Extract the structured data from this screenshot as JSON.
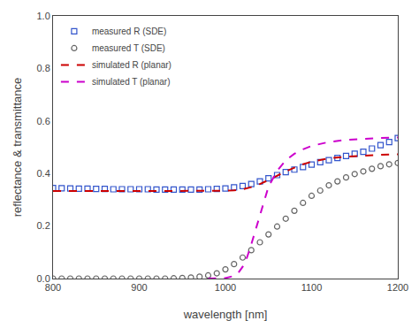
{
  "chart_data": {
    "type": "line",
    "xlabel": "wavelength [nm]",
    "ylabel": "reflectance & transmittance",
    "xlim": [
      800,
      1200
    ],
    "ylim": [
      0.0,
      1.0
    ],
    "xticks": [
      800,
      900,
      1000,
      1100,
      1200
    ],
    "yticks": [
      {
        "value": 0.0,
        "label": "0.0"
      },
      0.2,
      0.4,
      0.6,
      0.8,
      {
        "value": 1.0,
        "label": "1.0"
      }
    ],
    "grid": false,
    "legend": "upper left",
    "series": [
      {
        "name": "measured R (SDE)",
        "type": "scatter",
        "marker": "square",
        "color": "#3355cc",
        "x": [
          800,
          810,
          820,
          830,
          840,
          850,
          860,
          870,
          880,
          890,
          900,
          910,
          920,
          930,
          940,
          950,
          960,
          970,
          980,
          990,
          1000,
          1010,
          1020,
          1030,
          1040,
          1050,
          1060,
          1070,
          1080,
          1090,
          1100,
          1110,
          1120,
          1130,
          1140,
          1150,
          1160,
          1170,
          1180,
          1190,
          1200
        ],
        "values": [
          0.345,
          0.344,
          0.343,
          0.342,
          0.342,
          0.341,
          0.341,
          0.34,
          0.34,
          0.34,
          0.34,
          0.34,
          0.339,
          0.339,
          0.339,
          0.339,
          0.339,
          0.339,
          0.34,
          0.341,
          0.343,
          0.347,
          0.352,
          0.36,
          0.37,
          0.382,
          0.394,
          0.405,
          0.415,
          0.425,
          0.434,
          0.443,
          0.451,
          0.459,
          0.467,
          0.475,
          0.483,
          0.495,
          0.508,
          0.52,
          0.535
        ]
      },
      {
        "name": "measured T (SDE)",
        "type": "scatter",
        "marker": "circle",
        "color": "#666666",
        "x": [
          800,
          810,
          820,
          830,
          840,
          850,
          860,
          870,
          880,
          890,
          900,
          910,
          920,
          930,
          940,
          950,
          960,
          970,
          980,
          990,
          1000,
          1010,
          1020,
          1030,
          1040,
          1050,
          1060,
          1070,
          1080,
          1090,
          1100,
          1110,
          1120,
          1130,
          1140,
          1150,
          1160,
          1170,
          1180,
          1190,
          1200
        ],
        "values": [
          0.0,
          0.0,
          0.0,
          0.0,
          0.0,
          0.0,
          0.0,
          0.0,
          0.0,
          0.0,
          0.0,
          0.0,
          0.0,
          0.0,
          0.001,
          0.002,
          0.004,
          0.007,
          0.012,
          0.02,
          0.035,
          0.055,
          0.08,
          0.108,
          0.138,
          0.168,
          0.198,
          0.228,
          0.258,
          0.288,
          0.315,
          0.335,
          0.355,
          0.37,
          0.385,
          0.398,
          0.408,
          0.418,
          0.428,
          0.435,
          0.44
        ]
      },
      {
        "name": "simulated R (planar)",
        "type": "line",
        "line_style": "dashed",
        "color": "#cc0000",
        "x": [
          800,
          820,
          840,
          860,
          880,
          900,
          920,
          940,
          960,
          980,
          1000,
          1010,
          1020,
          1030,
          1040,
          1050,
          1060,
          1070,
          1080,
          1090,
          1100,
          1120,
          1140,
          1160,
          1180,
          1200
        ],
        "values": [
          0.333,
          0.333,
          0.333,
          0.333,
          0.333,
          0.333,
          0.333,
          0.333,
          0.333,
          0.333,
          0.334,
          0.336,
          0.34,
          0.348,
          0.36,
          0.375,
          0.392,
          0.408,
          0.422,
          0.435,
          0.445,
          0.458,
          0.464,
          0.468,
          0.471,
          0.473
        ]
      },
      {
        "name": "simulated T (planar)",
        "type": "line",
        "line_style": "dashed",
        "color": "#cc00cc",
        "x": [
          980,
          990,
          1000,
          1010,
          1015,
          1020,
          1025,
          1030,
          1035,
          1040,
          1050,
          1060,
          1070,
          1080,
          1090,
          1100,
          1120,
          1140,
          1160,
          1180,
          1200
        ],
        "values": [
          0.0,
          0.0,
          0.002,
          0.01,
          0.022,
          0.045,
          0.08,
          0.13,
          0.185,
          0.245,
          0.35,
          0.41,
          0.45,
          0.475,
          0.492,
          0.505,
          0.52,
          0.528,
          0.532,
          0.535,
          0.537
        ]
      }
    ]
  }
}
